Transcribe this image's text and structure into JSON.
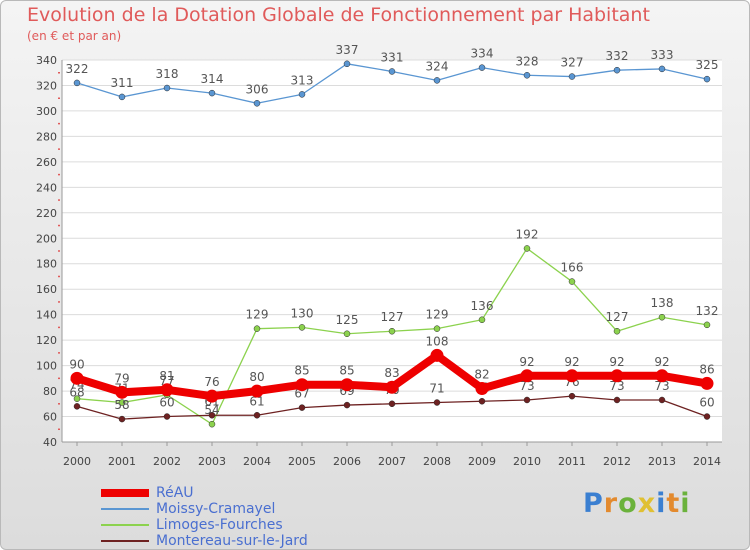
{
  "chart_data": {
    "type": "line",
    "title": "Evolution de la Dotation Globale de Fonctionnement par Habitant",
    "subtitle": "(en € et par an)",
    "xlabel": "",
    "ylabel": "",
    "ylim": [
      40,
      340
    ],
    "yticks": [
      40,
      60,
      80,
      100,
      120,
      140,
      160,
      180,
      200,
      220,
      240,
      260,
      280,
      300,
      320,
      340
    ],
    "categories": [
      "2000",
      "2001",
      "2002",
      "2003",
      "2004",
      "2005",
      "2006",
      "2007",
      "2008",
      "2009",
      "2010",
      "2011",
      "2012",
      "2013",
      "2014"
    ],
    "series": [
      {
        "name": "Moissy-Cramayel",
        "color": "#5a96d2",
        "values": [
          322,
          311,
          318,
          314,
          306,
          313,
          337,
          331,
          324,
          334,
          328,
          327,
          332,
          333,
          325
        ]
      },
      {
        "name": "Limoges-Fourches",
        "color": "#8cd24e",
        "values": [
          74,
          71,
          77,
          54,
          129,
          130,
          125,
          127,
          129,
          136,
          192,
          166,
          127,
          138,
          132
        ]
      },
      {
        "name": "Montereau-sur-le-Jard",
        "color": "#6e2222",
        "values": [
          68,
          58,
          60,
          61,
          61,
          67,
          69,
          70,
          71,
          72,
          73,
          76,
          73,
          73,
          60
        ]
      },
      {
        "name": "RéAU",
        "color": "#ee0000",
        "values": [
          90,
          79,
          81,
          76,
          80,
          85,
          85,
          83,
          108,
          82,
          92,
          92,
          92,
          92,
          86
        ]
      }
    ],
    "legend_position": "bottom-left"
  },
  "legend": [
    {
      "name": "RéAU",
      "color": "#ee0000",
      "thickness": 8
    },
    {
      "name": "Moissy-Cramayel",
      "color": "#5a96d2",
      "thickness": 2
    },
    {
      "name": "Limoges-Fourches",
      "color": "#8cd24e",
      "thickness": 2
    },
    {
      "name": "Montereau-sur-le-Jard",
      "color": "#6e2222",
      "thickness": 2
    }
  ],
  "brand": {
    "text": "Proxiti",
    "colors": [
      "#3a7fd1",
      "#e38a2e",
      "#6bb23c",
      "#e0c032",
      "#3a7fd1",
      "#e38a2e",
      "#6bb23c"
    ]
  }
}
